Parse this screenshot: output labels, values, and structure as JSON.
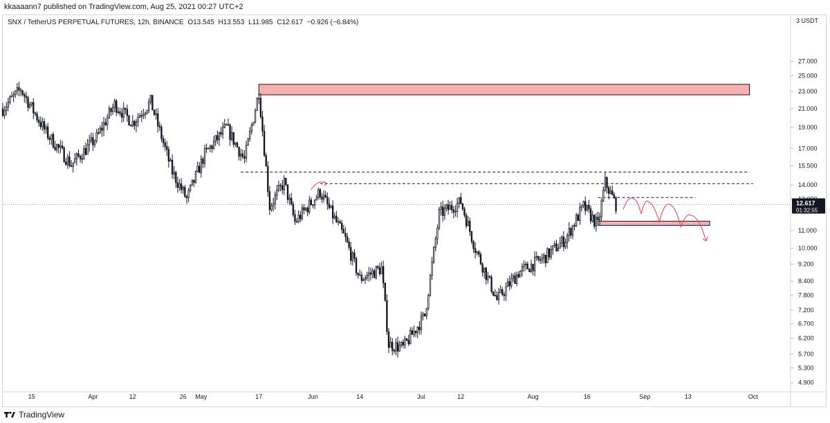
{
  "header": {
    "published_line": "kkaaaann7 published on TradingView.com, Aug 25, 2021 00:27 UTC+2"
  },
  "legend": {
    "symbol": "SNX / TetherUS PERPETUAL FUTURES, 12h, BINANCE",
    "open": "O13.545",
    "high": "H13.553",
    "low": "L11.985",
    "close": "C12.617",
    "change": "−0.926 (−6.84%)"
  },
  "price_axis": {
    "unit": "3 USDT",
    "current_price": "12.617",
    "countdown": "01:32:55"
  },
  "footer": {
    "brand": "TradingView"
  },
  "colors": {
    "up": "#131722",
    "down": "#131722",
    "zone_fill": "#f8b1b1",
    "zone_stroke": "#131722",
    "projection": "#f23645",
    "price_tag_bg": "#131722"
  },
  "chart_data": {
    "type": "candlestick",
    "interval": "12h",
    "scale": "log",
    "x_ticks": [
      "15",
      "Apr",
      "12",
      "26",
      "May",
      "17",
      "Jun",
      "14",
      "Jul",
      "12",
      "Aug",
      "16",
      "Sep",
      "13",
      "Oct"
    ],
    "y_ticks": [
      "27.000",
      "25.000",
      "23.000",
      "21.000",
      "19.000",
      "17.000",
      "15.500",
      "14.000",
      "13.000",
      "11.000",
      "10.000",
      "9.200",
      "8.400",
      "7.800",
      "7.200",
      "6.700",
      "6.200",
      "5.700",
      "5.300",
      "4.900"
    ],
    "y_range": [
      4.7,
      30
    ],
    "x_range": [
      "2021-03-07",
      "2021-10-07"
    ],
    "current_price": 12.617,
    "price_path": [
      {
        "date": "2021-03-07",
        "price": 21.0
      },
      {
        "date": "2021-03-12",
        "price": 23.3
      },
      {
        "date": "2021-03-19",
        "price": 18.5
      },
      {
        "date": "2021-03-26",
        "price": 15.6
      },
      {
        "date": "2021-04-02",
        "price": 18.0
      },
      {
        "date": "2021-04-07",
        "price": 21.5
      },
      {
        "date": "2021-04-12",
        "price": 19.5
      },
      {
        "date": "2021-04-17",
        "price": 21.8
      },
      {
        "date": "2021-04-23",
        "price": 15.0
      },
      {
        "date": "2021-04-27",
        "price": 13.0
      },
      {
        "date": "2021-05-02",
        "price": 16.5
      },
      {
        "date": "2021-05-08",
        "price": 19.0
      },
      {
        "date": "2021-05-13",
        "price": 16.0
      },
      {
        "date": "2021-05-17",
        "price": 23.0
      },
      {
        "date": "2021-05-20",
        "price": 12.5
      },
      {
        "date": "2021-05-24",
        "price": 14.2
      },
      {
        "date": "2021-05-27",
        "price": 11.5
      },
      {
        "date": "2021-06-03",
        "price": 13.5
      },
      {
        "date": "2021-06-10",
        "price": 10.5
      },
      {
        "date": "2021-06-14",
        "price": 8.5
      },
      {
        "date": "2021-06-20",
        "price": 9.0
      },
      {
        "date": "2021-06-22",
        "price": 6.0
      },
      {
        "date": "2021-06-26",
        "price": 5.9
      },
      {
        "date": "2021-07-02",
        "price": 7.0
      },
      {
        "date": "2021-07-06",
        "price": 12.0
      },
      {
        "date": "2021-07-12",
        "price": 12.8
      },
      {
        "date": "2021-07-16",
        "price": 10.0
      },
      {
        "date": "2021-07-22",
        "price": 7.6
      },
      {
        "date": "2021-07-28",
        "price": 8.8
      },
      {
        "date": "2021-08-04",
        "price": 9.5
      },
      {
        "date": "2021-08-10",
        "price": 10.5
      },
      {
        "date": "2021-08-15",
        "price": 12.5
      },
      {
        "date": "2021-08-19",
        "price": 11.3
      },
      {
        "date": "2021-08-21",
        "price": 14.2
      },
      {
        "date": "2021-08-24",
        "price": 12.617
      }
    ],
    "horizontal_levels": [
      {
        "from": "2021-05-12",
        "to": "2021-09-30",
        "price": 15.0,
        "style": "dashed"
      },
      {
        "from": "2021-06-03",
        "to": "2021-10-01",
        "price": 14.1,
        "style": "dashed"
      },
      {
        "from": "2021-08-19",
        "to": "2021-09-15",
        "price": 13.1,
        "style": "dashed"
      }
    ],
    "zones": [
      {
        "from": "2021-05-17",
        "to": "2021-09-30",
        "top": 23.9,
        "bottom": 22.6
      },
      {
        "from": "2021-08-19",
        "to": "2021-09-19",
        "top": 11.55,
        "bottom": 11.3
      }
    ],
    "projection": [
      {
        "date": "2021-08-26",
        "price": 12.3
      },
      {
        "date": "2021-08-29",
        "price": 13.0
      },
      {
        "date": "2021-08-31",
        "price": 12.0
      },
      {
        "date": "2021-09-02",
        "price": 12.8
      },
      {
        "date": "2021-09-05",
        "price": 11.5
      },
      {
        "date": "2021-09-08",
        "price": 12.6
      },
      {
        "date": "2021-09-11",
        "price": 11.2
      },
      {
        "date": "2021-09-14",
        "price": 11.9
      },
      {
        "date": "2021-09-18",
        "price": 10.4
      }
    ]
  }
}
